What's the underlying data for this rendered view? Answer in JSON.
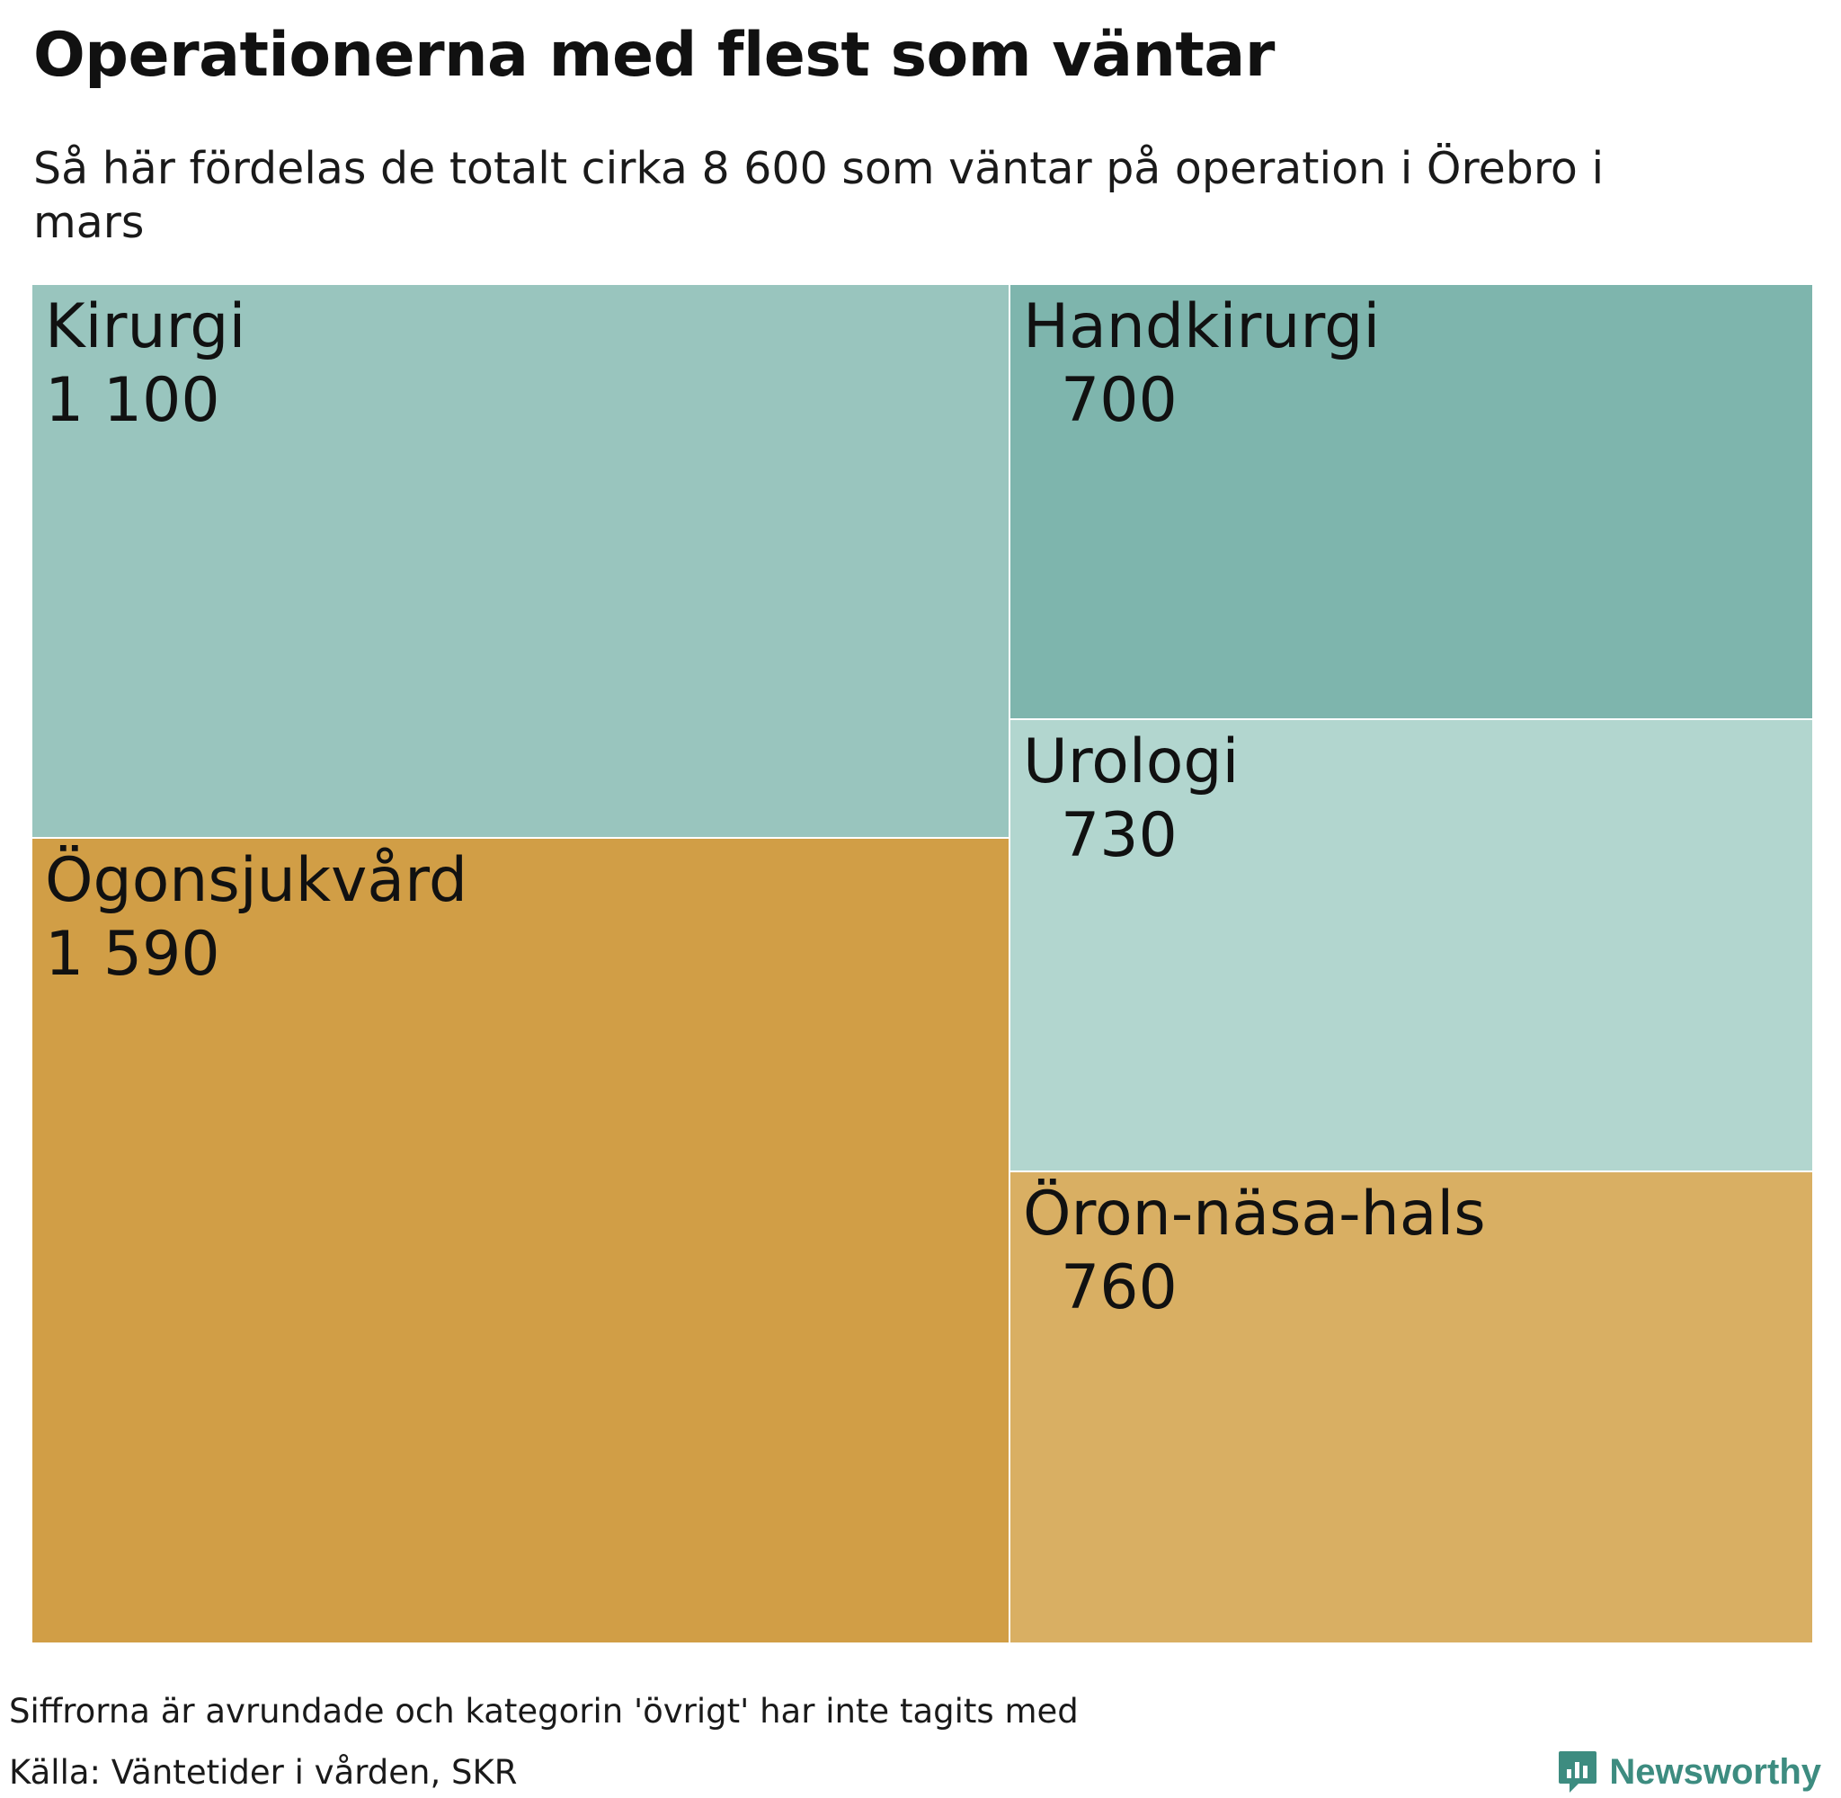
{
  "title": "Operationerna med flest som väntar",
  "subtitle": "Så här fördelas de totalt cirka 8 600 som väntar på operation i Örebro i mars",
  "note": "Siffrorna är avrundade och kategorin 'övrigt' har inte tagits med",
  "source": "Källa: Väntetider i vården, SKR",
  "brand": {
    "name": "Newsworthy",
    "icon": "newsworthy-logo-icon",
    "color": "#3d8c80"
  },
  "chart_data": {
    "type": "treemap",
    "title": "Operationerna med flest som väntar",
    "subtitle": "Så här fördelas de totalt cirka 8 600 som väntar på operation i Örebro i mars",
    "items": [
      {
        "name": "Kirurgi",
        "value": 1100,
        "label": "1 100",
        "color": "#99c5be"
      },
      {
        "name": "Ögonsjukvård",
        "value": 1590,
        "label": "1 590",
        "color": "#d19e46"
      },
      {
        "name": "Handkirurgi",
        "value": 700,
        "label": "700",
        "color": "#7eb5ad"
      },
      {
        "name": "Urologi",
        "value": 730,
        "label": "730",
        "color": "#b2d6cf"
      },
      {
        "name": "Öron-näsa-hals",
        "value": 760,
        "label": "760",
        "color": "#d9af63"
      }
    ]
  }
}
